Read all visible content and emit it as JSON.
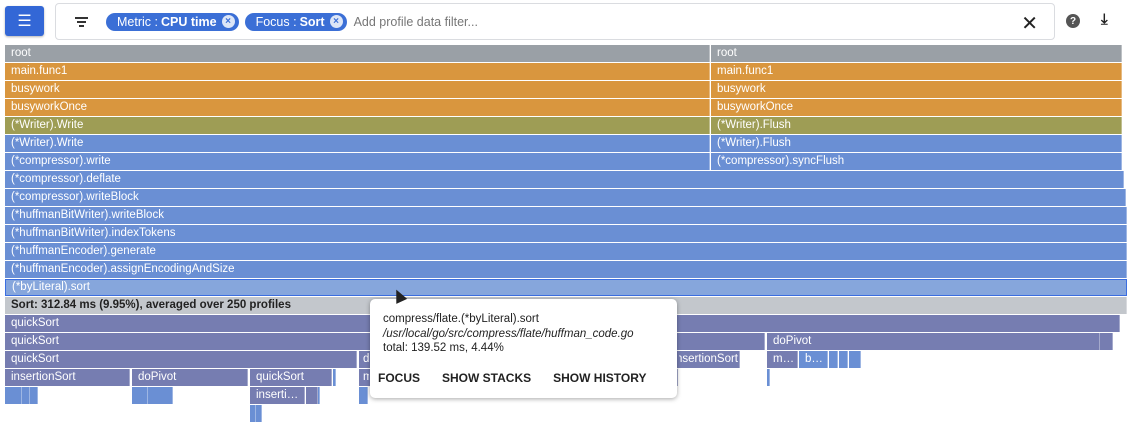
{
  "toolbar": {
    "menu_icon": "list-icon",
    "filter_icon": "filter-icon",
    "chips": [
      {
        "key": "Metric :",
        "value": "CPU time"
      },
      {
        "key": "Focus :",
        "value": "Sort"
      }
    ],
    "placeholder": "Add profile data filter...",
    "clear_icon": "close-icon",
    "help_icon": "help-icon",
    "download_icon": "download-icon"
  },
  "colors": {
    "accent": "#3367d6",
    "root": "#9aa0a6",
    "app": "#d9963e",
    "writer": "#9e9d55",
    "lib": "#6a8fd4",
    "sort": "#767db1",
    "selected_border": "#3b6ee0"
  },
  "frames": [
    "root",
    "root",
    "main.func1",
    "main.func1",
    "busywork",
    "busywork",
    "busyworkOnce",
    "busyworkOnce",
    "(*Writer).Write",
    "(*Writer).Flush",
    "(*Writer).Write",
    "(*Writer).Flush",
    "(*compressor).write",
    "(*compressor).syncFlush",
    "(*compressor).deflate",
    "(*compressor).writeBlock",
    "(*huffmanBitWriter).writeBlock",
    "(*huffmanBitWriter).indexTokens",
    "(*huffmanEncoder).generate",
    "(*huffmanEncoder).assignEncodingAndSize",
    "(*byLiteral).sort",
    "Sort: 312.84 ms (9.95%), averaged over 250 profiles",
    "quickSort",
    "quickSort",
    "doPivot",
    "",
    "quickSort",
    "doPivot",
    "insertionSort",
    "me…",
    "by…",
    "",
    "",
    "",
    "insertionSort",
    "doPivot",
    "quickSort",
    "",
    "m…",
    "",
    "",
    "",
    "",
    "",
    "",
    "",
    "insertio…",
    "",
    "",
    "",
    ""
  ],
  "tooltip": {
    "name": "compress/flate.(*byLiteral).sort",
    "file": "/usr/local/go/src/compress/flate/huffman_code.go",
    "total": "total: 139.52 ms, 4.44%",
    "actions": [
      "FOCUS",
      "SHOW STACKS",
      "SHOW HISTORY"
    ]
  }
}
